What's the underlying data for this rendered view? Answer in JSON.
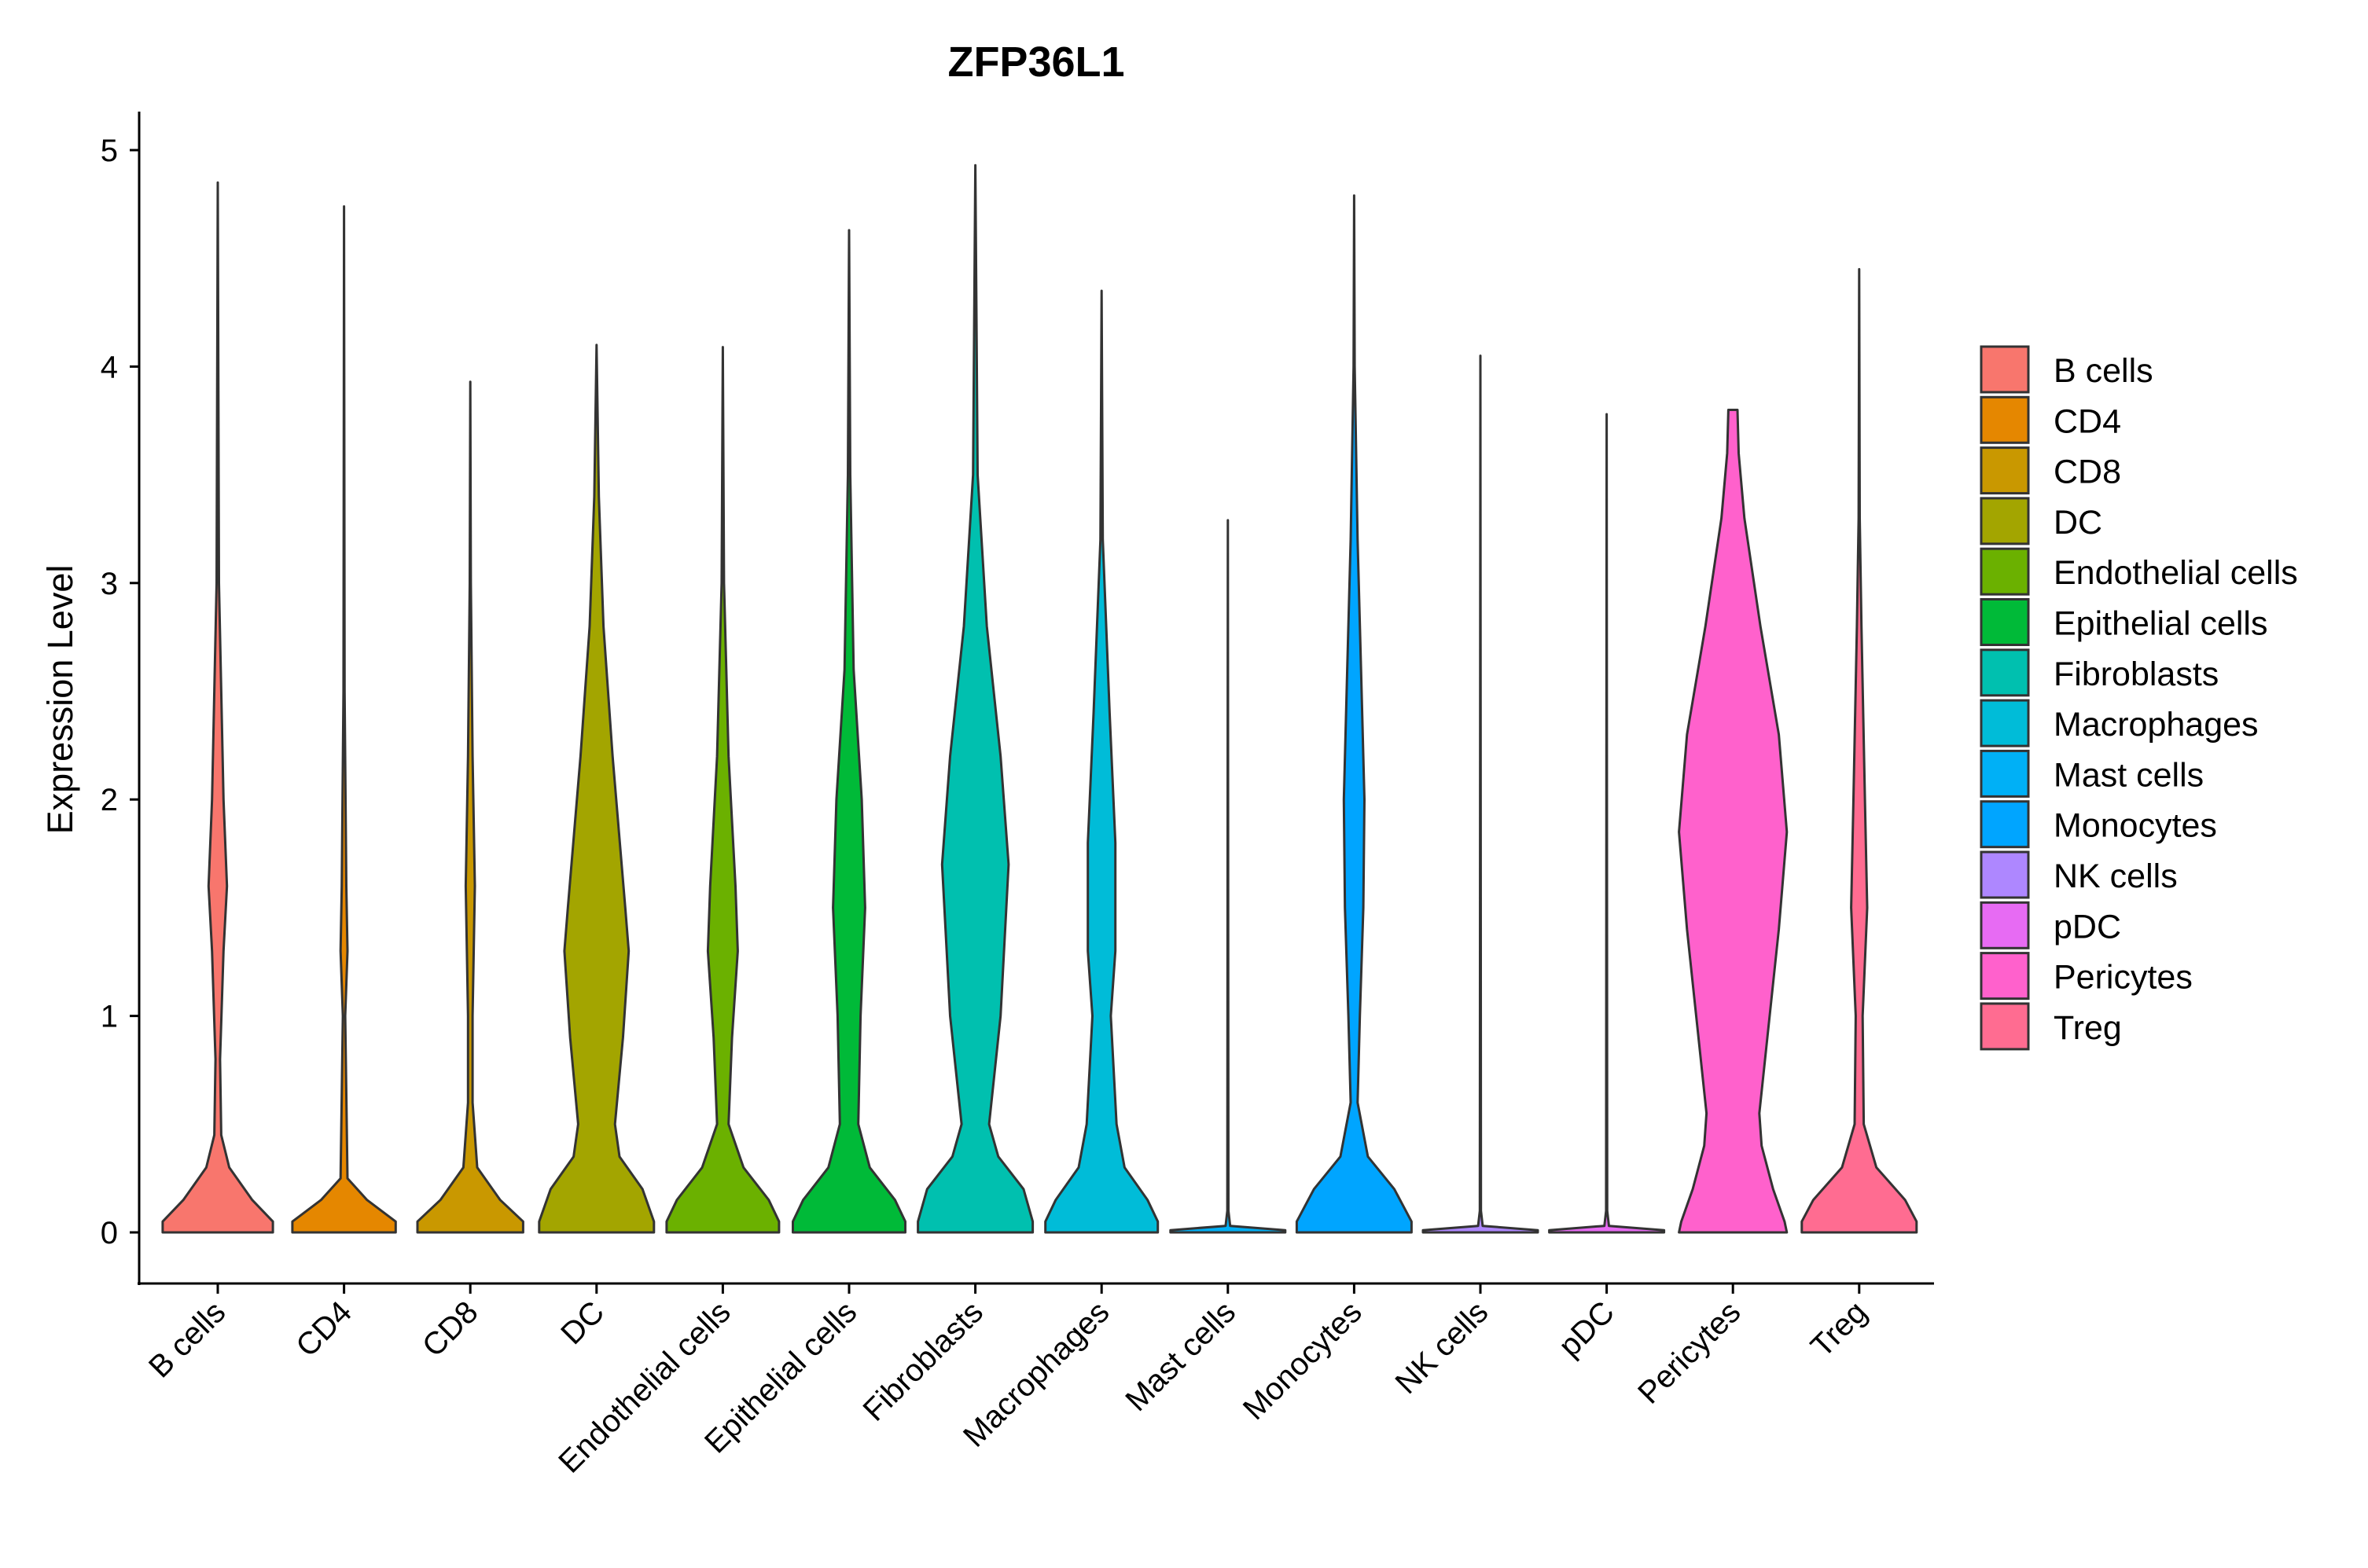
{
  "chart_data": {
    "type": "violin",
    "title": "ZFP36L1",
    "xlabel": "",
    "ylabel": "Expression Level",
    "ylim": [
      -0.25,
      5.18
    ],
    "y_ticks": [
      0,
      1,
      2,
      3,
      4,
      5
    ],
    "grid": false,
    "legend": "right",
    "categories": [
      "B cells",
      "CD4",
      "CD8",
      "DC",
      "Endothelial cells",
      "Epithelial cells",
      "Fibroblasts",
      "Macrophages",
      "Mast cells",
      "Monocytes",
      "NK cells",
      "pDC",
      "Pericytes",
      "Treg"
    ],
    "colors": [
      "#F8766D",
      "#E58700",
      "#C99800",
      "#A3A500",
      "#6BB100",
      "#00BA38",
      "#00C0AF",
      "#00BCD8",
      "#00B0F6",
      "#00A5FF",
      "#AE87FF",
      "#E76BF3",
      "#FF61CC",
      "#FF6C91"
    ],
    "max_values": [
      4.85,
      4.74,
      3.93,
      4.1,
      4.09,
      4.63,
      4.93,
      4.35,
      3.29,
      4.79,
      4.05,
      3.78,
      3.8,
      4.45
    ],
    "violins": [
      {
        "name": "B cells",
        "profile": [
          [
            0,
            0.48
          ],
          [
            0.05,
            0.48
          ],
          [
            0.15,
            0.3
          ],
          [
            0.3,
            0.1
          ],
          [
            0.45,
            0.03
          ],
          [
            0.8,
            0.02
          ],
          [
            1.3,
            0.05
          ],
          [
            1.6,
            0.08
          ],
          [
            2.0,
            0.05
          ],
          [
            3.0,
            0.01
          ],
          [
            4.85,
            0
          ]
        ]
      },
      {
        "name": "CD4",
        "profile": [
          [
            0,
            0.45
          ],
          [
            0.05,
            0.45
          ],
          [
            0.15,
            0.2
          ],
          [
            0.25,
            0.03
          ],
          [
            1.0,
            0.01
          ],
          [
            1.3,
            0.03
          ],
          [
            1.6,
            0.02
          ],
          [
            2.5,
            0.005
          ],
          [
            4.74,
            0
          ]
        ]
      },
      {
        "name": "CD8",
        "profile": [
          [
            0,
            0.46
          ],
          [
            0.05,
            0.46
          ],
          [
            0.15,
            0.26
          ],
          [
            0.3,
            0.06
          ],
          [
            0.6,
            0.02
          ],
          [
            1.0,
            0.02
          ],
          [
            1.6,
            0.04
          ],
          [
            2.2,
            0.02
          ],
          [
            3.0,
            0.005
          ],
          [
            3.93,
            0
          ]
        ]
      },
      {
        "name": "DC",
        "profile": [
          [
            0,
            0.5
          ],
          [
            0.05,
            0.5
          ],
          [
            0.2,
            0.4
          ],
          [
            0.35,
            0.2
          ],
          [
            0.5,
            0.16
          ],
          [
            0.9,
            0.23
          ],
          [
            1.3,
            0.28
          ],
          [
            1.5,
            0.25
          ],
          [
            2.2,
            0.14
          ],
          [
            2.8,
            0.06
          ],
          [
            3.4,
            0.02
          ],
          [
            4.1,
            0
          ]
        ]
      },
      {
        "name": "Endothelial cells",
        "profile": [
          [
            0,
            0.49
          ],
          [
            0.05,
            0.49
          ],
          [
            0.15,
            0.4
          ],
          [
            0.3,
            0.18
          ],
          [
            0.5,
            0.05
          ],
          [
            0.9,
            0.08
          ],
          [
            1.3,
            0.13
          ],
          [
            1.6,
            0.11
          ],
          [
            2.2,
            0.05
          ],
          [
            3.0,
            0.01
          ],
          [
            4.09,
            0
          ]
        ]
      },
      {
        "name": "Epithelial cells",
        "profile": [
          [
            0,
            0.49
          ],
          [
            0.05,
            0.49
          ],
          [
            0.15,
            0.4
          ],
          [
            0.3,
            0.18
          ],
          [
            0.5,
            0.08
          ],
          [
            1.0,
            0.1
          ],
          [
            1.5,
            0.14
          ],
          [
            2.0,
            0.11
          ],
          [
            2.6,
            0.04
          ],
          [
            3.5,
            0.01
          ],
          [
            4.63,
            0
          ]
        ]
      },
      {
        "name": "Fibroblasts",
        "profile": [
          [
            0,
            0.5
          ],
          [
            0.05,
            0.5
          ],
          [
            0.2,
            0.42
          ],
          [
            0.35,
            0.2
          ],
          [
            0.5,
            0.12
          ],
          [
            1.0,
            0.22
          ],
          [
            1.7,
            0.29
          ],
          [
            2.2,
            0.22
          ],
          [
            2.8,
            0.1
          ],
          [
            3.5,
            0.02
          ],
          [
            4.93,
            0
          ]
        ]
      },
      {
        "name": "Macrophages",
        "profile": [
          [
            0,
            0.49
          ],
          [
            0.05,
            0.49
          ],
          [
            0.15,
            0.4
          ],
          [
            0.3,
            0.2
          ],
          [
            0.5,
            0.13
          ],
          [
            1.0,
            0.08
          ],
          [
            1.3,
            0.12
          ],
          [
            1.8,
            0.12
          ],
          [
            2.4,
            0.07
          ],
          [
            3.2,
            0.01
          ],
          [
            4.35,
            0
          ]
        ]
      },
      {
        "name": "Mast cells",
        "profile": [
          [
            0,
            0.5
          ],
          [
            0.01,
            0.5
          ],
          [
            0.03,
            0.02
          ],
          [
            0.1,
            0.005
          ],
          [
            3.29,
            0
          ]
        ]
      },
      {
        "name": "Monocytes",
        "profile": [
          [
            0,
            0.5
          ],
          [
            0.05,
            0.5
          ],
          [
            0.2,
            0.35
          ],
          [
            0.35,
            0.12
          ],
          [
            0.6,
            0.03
          ],
          [
            1.0,
            0.05
          ],
          [
            1.5,
            0.08
          ],
          [
            2.0,
            0.09
          ],
          [
            2.6,
            0.06
          ],
          [
            3.2,
            0.03
          ],
          [
            4.0,
            0.005
          ],
          [
            4.79,
            0
          ]
        ]
      },
      {
        "name": "NK cells",
        "profile": [
          [
            0,
            0.5
          ],
          [
            0.01,
            0.5
          ],
          [
            0.03,
            0.02
          ],
          [
            0.1,
            0.005
          ],
          [
            4.05,
            0
          ]
        ]
      },
      {
        "name": "pDC",
        "profile": [
          [
            0,
            0.5
          ],
          [
            0.01,
            0.5
          ],
          [
            0.03,
            0.02
          ],
          [
            0.1,
            0.005
          ],
          [
            3.78,
            0
          ]
        ]
      },
      {
        "name": "Pericytes",
        "profile": [
          [
            0,
            0.47
          ],
          [
            0.05,
            0.45
          ],
          [
            0.2,
            0.35
          ],
          [
            0.4,
            0.25
          ],
          [
            0.55,
            0.23
          ],
          [
            0.9,
            0.3
          ],
          [
            1.4,
            0.4
          ],
          [
            1.85,
            0.47
          ],
          [
            2.3,
            0.4
          ],
          [
            2.8,
            0.24
          ],
          [
            3.3,
            0.1
          ],
          [
            3.6,
            0.05
          ],
          [
            3.8,
            0.04
          ]
        ]
      },
      {
        "name": "Treg",
        "profile": [
          [
            0,
            0.5
          ],
          [
            0.05,
            0.5
          ],
          [
            0.15,
            0.4
          ],
          [
            0.3,
            0.15
          ],
          [
            0.5,
            0.04
          ],
          [
            1.0,
            0.03
          ],
          [
            1.5,
            0.07
          ],
          [
            2.0,
            0.05
          ],
          [
            2.8,
            0.02
          ],
          [
            3.3,
            0.005
          ],
          [
            4.45,
            0
          ]
        ]
      }
    ]
  }
}
